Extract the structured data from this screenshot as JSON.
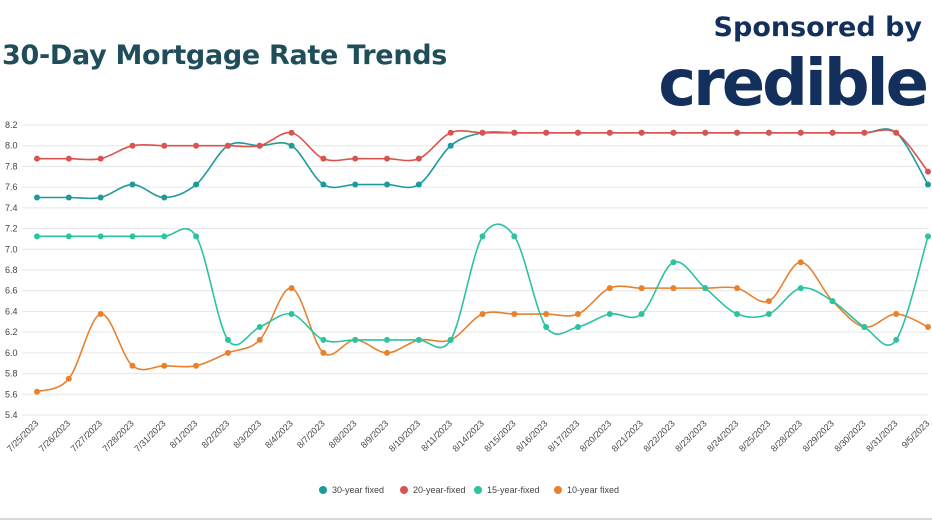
{
  "header": {
    "title": "30-Day Mortgage Rate Trends",
    "sponsor_text": "Sponsored by",
    "brand": "credible"
  },
  "colors": {
    "title": "#1f4e5a",
    "brand": "#13305c",
    "series_30": "#1f9a9a",
    "series_20": "#d9534f",
    "series_15": "#2bc3a2",
    "series_10": "#e8812e"
  },
  "chart_data": {
    "type": "line",
    "title": "",
    "xlabel": "",
    "ylabel": "",
    "ylim": [
      5.4,
      8.2
    ],
    "yticks": [
      "5.4",
      "5.6",
      "5.8",
      "6.0",
      "6.2",
      "6.4",
      "6.6",
      "6.8",
      "7.0",
      "7.2",
      "7.4",
      "7.6",
      "7.8",
      "8.0",
      "8.2"
    ],
    "grid": true,
    "legend_position": "bottom",
    "categories": [
      "7/25/2023",
      "7/26/2023",
      "7/27/2023",
      "7/28/2023",
      "7/31/2023",
      "8/1/2023",
      "8/2/2023",
      "8/3/2023",
      "8/4/2023",
      "8/7/2023",
      "8/8/2023",
      "8/9/2023",
      "8/10/2023",
      "8/11/2023",
      "8/14/2023",
      "8/15/2023",
      "8/16/2023",
      "8/17/2023",
      "8/20/2023",
      "8/21/2023",
      "8/22/2023",
      "8/23/2023",
      "8/24/2023",
      "8/25/2023",
      "8/28/2023",
      "8/29/2023",
      "8/30/2023",
      "8/31/2023",
      "9/5/2023"
    ],
    "series": [
      {
        "name": "30-year fixed",
        "color": "#1f9a9a",
        "values": [
          7.5,
          7.5,
          7.5,
          7.625,
          7.5,
          7.625,
          8.0,
          8.0,
          8.0,
          7.625,
          7.625,
          7.625,
          7.625,
          8.0,
          8.125,
          8.125,
          8.125,
          8.125,
          8.125,
          8.125,
          8.125,
          8.125,
          8.125,
          8.125,
          8.125,
          8.125,
          8.125,
          8.125,
          7.625
        ]
      },
      {
        "name": "20-year-fixed",
        "color": "#d9534f",
        "values": [
          7.875,
          7.875,
          7.875,
          8.0,
          8.0,
          8.0,
          8.0,
          8.0,
          8.125,
          7.875,
          7.875,
          7.875,
          7.875,
          8.125,
          8.125,
          8.125,
          8.125,
          8.125,
          8.125,
          8.125,
          8.125,
          8.125,
          8.125,
          8.125,
          8.125,
          8.125,
          8.125,
          8.125,
          7.75
        ]
      },
      {
        "name": "15-year-fixed",
        "color": "#2bc3a2",
        "values": [
          7.125,
          7.125,
          7.125,
          7.125,
          7.125,
          7.125,
          6.125,
          6.25,
          6.375,
          6.125,
          6.125,
          6.125,
          6.125,
          6.125,
          7.125,
          7.125,
          6.25,
          6.25,
          6.375,
          6.375,
          6.875,
          6.625,
          6.375,
          6.375,
          6.625,
          6.5,
          6.25,
          6.125,
          7.125
        ]
      },
      {
        "name": "10-year fixed",
        "color": "#e8812e",
        "values": [
          5.625,
          5.75,
          6.375,
          5.875,
          5.875,
          5.875,
          6.0,
          6.125,
          6.625,
          6.0,
          6.125,
          6.0,
          6.125,
          6.125,
          6.375,
          6.375,
          6.375,
          6.375,
          6.625,
          6.625,
          6.625,
          6.625,
          6.625,
          6.5,
          6.875,
          6.5,
          6.25,
          6.375,
          6.25
        ]
      }
    ]
  }
}
